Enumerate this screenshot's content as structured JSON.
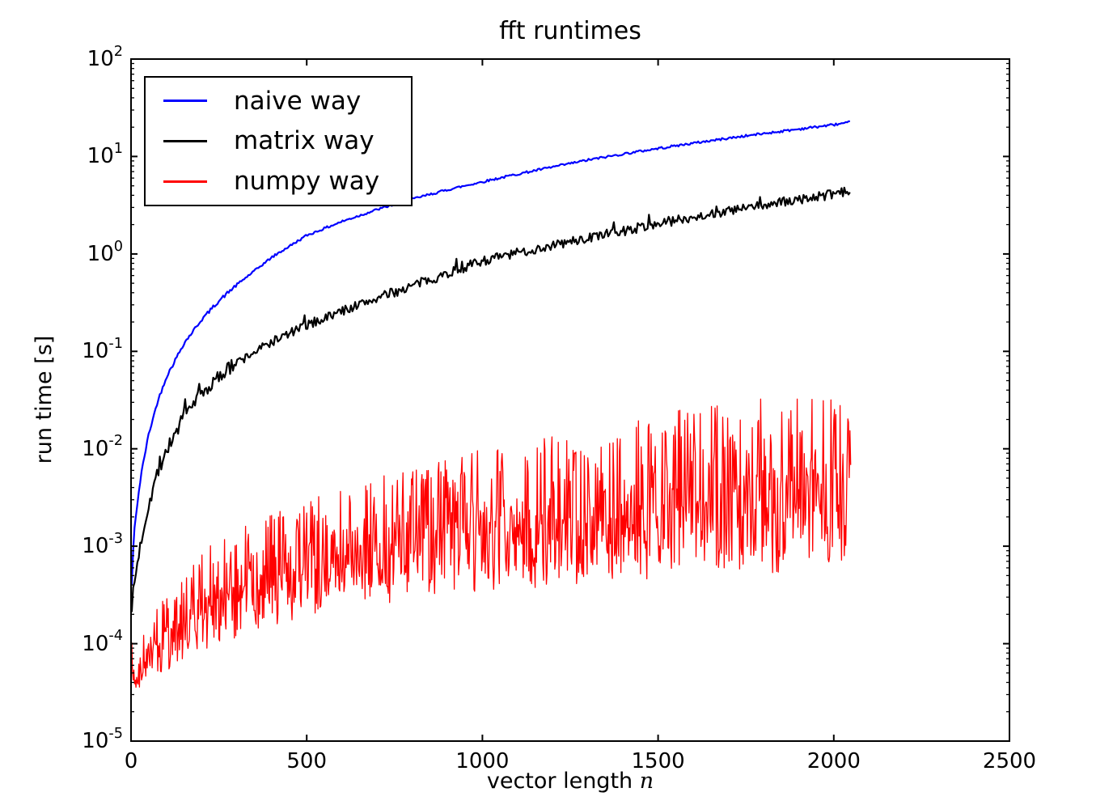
{
  "title": "fft runtimes",
  "axes": {
    "xlabel_prefix": "vector length ",
    "xlabel_var": "n",
    "ylabel": "run time [s]"
  },
  "legend": {
    "items": [
      {
        "label": "naive way"
      },
      {
        "label": "matrix way"
      },
      {
        "label": "numpy way"
      }
    ]
  },
  "chart_data": {
    "type": "line",
    "title": "fft runtimes",
    "xlabel": "vector length n",
    "ylabel": "run time [s]",
    "y_scale": "log",
    "grid": false,
    "legend_position": "upper left",
    "x_range": [
      0,
      2500
    ],
    "y_range": [
      1e-05,
      100
    ],
    "x_ticks": [
      0,
      500,
      1000,
      1500,
      2000,
      2500
    ],
    "x_tick_labels": [
      "0",
      "500",
      "1000",
      "1500",
      "2000",
      "2500"
    ],
    "y_tick_exponents": [
      2,
      1,
      0,
      -1,
      -2,
      -3,
      -4,
      -5
    ],
    "y_tick_labels": [
      "10^2",
      "10^1",
      "10^0",
      "10^-1",
      "10^-2",
      "10^-3",
      "10^-4",
      "10^-5"
    ],
    "x_max_data": 2048,
    "series": [
      {
        "name": "naive way",
        "color": "#0000ff",
        "style": "smooth line",
        "noise_decades": 0.012,
        "x": [
          2,
          5,
          10,
          20,
          30,
          50,
          75,
          100,
          150,
          200,
          250,
          300,
          400,
          500,
          600,
          700,
          800,
          900,
          1000,
          1100,
          1200,
          1300,
          1400,
          1500,
          1600,
          1700,
          1800,
          1900,
          2000,
          2048
        ],
        "y": [
          0.0004,
          0.0008,
          0.0015,
          0.0032,
          0.0058,
          0.014,
          0.03,
          0.054,
          0.12,
          0.21,
          0.33,
          0.48,
          0.92,
          1.55,
          2.15,
          2.85,
          3.65,
          4.55,
          5.5,
          6.6,
          7.8,
          9.2,
          10.6,
          12.1,
          13.7,
          15.4,
          17.2,
          19.1,
          21.2,
          22.5
        ]
      },
      {
        "name": "matrix way",
        "color": "#000000",
        "style": "slightly noisy line",
        "noise_decades": 0.05,
        "x": [
          2,
          5,
          10,
          20,
          30,
          50,
          75,
          100,
          150,
          200,
          250,
          300,
          400,
          500,
          600,
          700,
          800,
          900,
          1000,
          1100,
          1200,
          1300,
          1400,
          1500,
          1600,
          1700,
          1800,
          1900,
          2000,
          2048
        ],
        "y": [
          0.00025,
          0.0003,
          0.00042,
          0.00075,
          0.0012,
          0.0027,
          0.0056,
          0.0095,
          0.021,
          0.036,
          0.054,
          0.076,
          0.125,
          0.185,
          0.26,
          0.35,
          0.47,
          0.63,
          0.85,
          1.02,
          1.22,
          1.45,
          1.72,
          2.05,
          2.4,
          2.75,
          3.15,
          3.6,
          4.1,
          4.4
        ]
      },
      {
        "name": "numpy way",
        "color": "#ff0000",
        "style": "dense noisy band oscillating between envelopes",
        "band": true,
        "x": [
          2,
          5,
          10,
          20,
          30,
          50,
          75,
          100,
          150,
          200,
          250,
          300,
          400,
          500,
          600,
          700,
          800,
          900,
          1000,
          1100,
          1200,
          1300,
          1400,
          1500,
          1600,
          1700,
          1800,
          1900,
          2000,
          2048
        ],
        "y_low": [
          9e-05,
          3.6e-05,
          3.2e-05,
          3.3e-05,
          3.5e-05,
          3.9e-05,
          4.4e-05,
          5e-05,
          6.2e-05,
          7.8e-05,
          9.5e-05,
          0.00011,
          0.000145,
          0.00018,
          0.00021,
          0.000235,
          0.00026,
          0.000285,
          0.00031,
          0.00033,
          0.00035,
          0.00037,
          0.00039,
          0.00041,
          0.00043,
          0.00045,
          0.00047,
          0.00049,
          0.00051,
          0.00052
        ],
        "y_high": [
          0.00012,
          9e-05,
          8e-05,
          9e-05,
          0.00011,
          0.00016,
          0.00023,
          0.00032,
          0.00055,
          0.00085,
          0.0012,
          0.0016,
          0.0023,
          0.003,
          0.004,
          0.0052,
          0.0066,
          0.0082,
          0.01,
          0.012,
          0.0145,
          0.017,
          0.02,
          0.023,
          0.0265,
          0.03,
          0.034,
          0.038,
          0.042,
          0.044
        ]
      }
    ]
  }
}
